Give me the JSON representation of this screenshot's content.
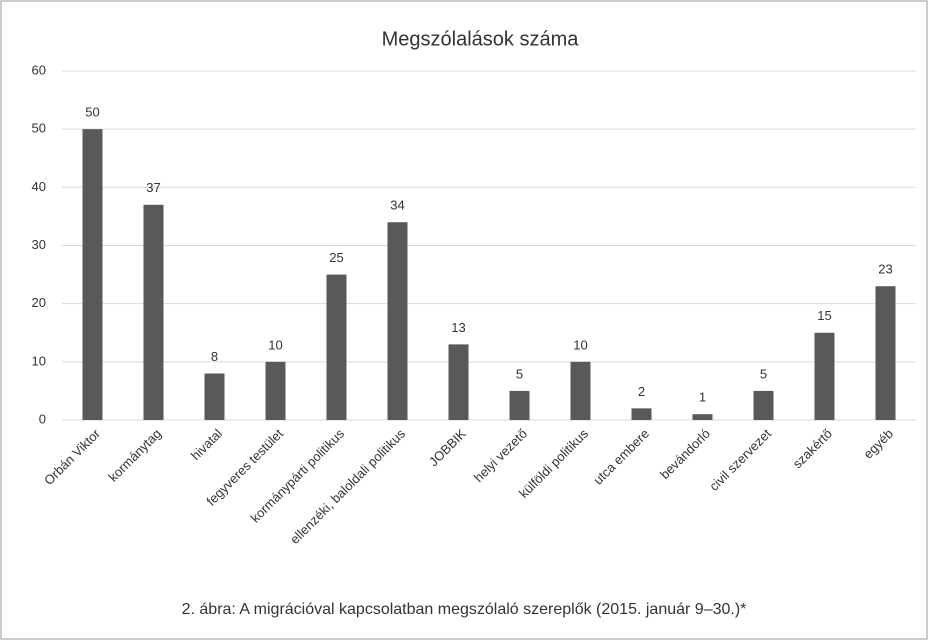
{
  "chart_data": {
    "type": "bar",
    "title": "Megszólalások száma",
    "categories": [
      "Orbán Viktor",
      "kormánytag",
      "hivatal",
      "fegyveres testület",
      "kormánypárti politikus",
      "ellenzéki, baloldali politikus",
      "JOBBIK",
      "helyi vezető",
      "külföldi politikus",
      "utca embere",
      "bevándorló",
      "civil szervezet",
      "szakértő",
      "egyéb"
    ],
    "values": [
      50,
      37,
      8,
      10,
      25,
      34,
      13,
      5,
      10,
      2,
      1,
      5,
      15,
      23
    ],
    "color": "#595959",
    "ylim": [
      0,
      60
    ],
    "yticks": [
      0,
      10,
      20,
      30,
      40,
      50,
      60
    ],
    "grid": true,
    "caption": "2. ábra: A migrációval kapcsolatban megszólaló szereplők (2015. január 9–30.)*"
  }
}
